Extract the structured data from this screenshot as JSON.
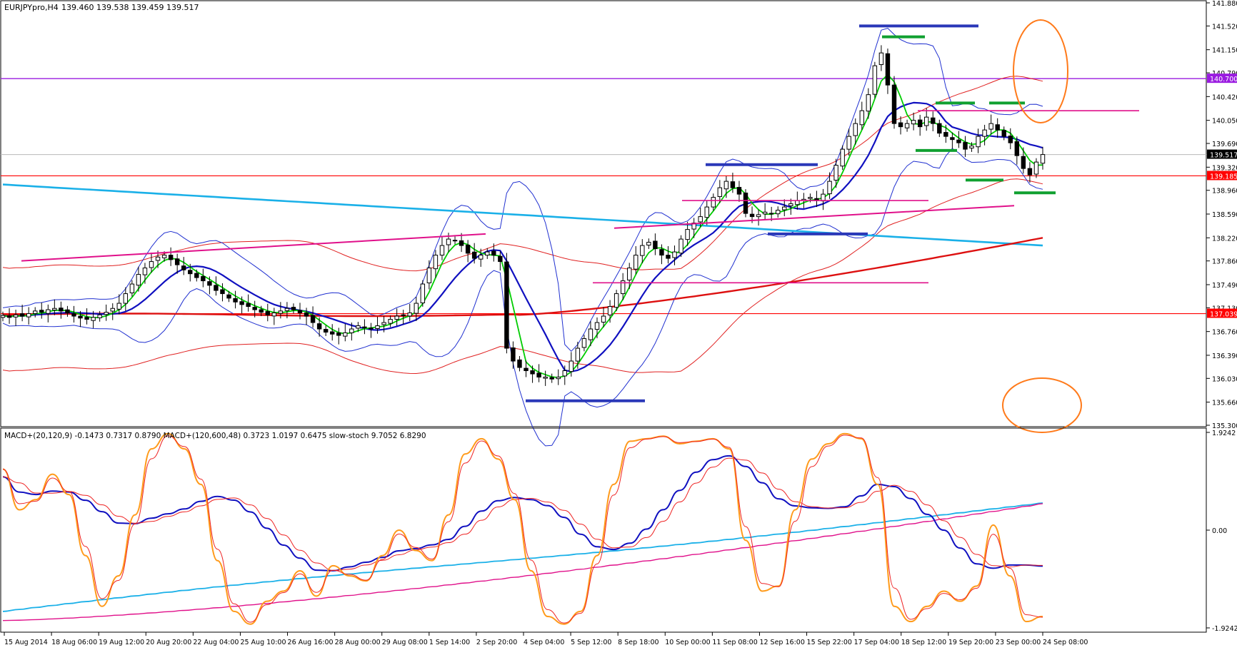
{
  "header": {
    "title": "EURJPYpro,H4",
    "ohlc": "139.460 139.538 139.459 139.517"
  },
  "indicator_header": "MACD+(20,120,9) -0.1473 0.7317 0.8790   MACD+(120,600,48) 0.3723 1.0197 0.6475   slow-stoch 9.7052 6.8290",
  "colors": {
    "bull": "#ffffff",
    "bear": "#000000",
    "ma_fast": "#00cc00",
    "ma_mid": "#1010c0",
    "ma_long": "#dd1010",
    "ma_slow": "#1ab0e8",
    "bollinger": "#2030d0",
    "envelope": "#e02020",
    "trendline": "#e0108a",
    "level_purple": "#9a1be0",
    "level_red": "#ff0000",
    "annotation": "#ff7a1a",
    "bar_blue": "#2a38b8",
    "bar_green": "#10a030",
    "stoch": "#ff9a1a",
    "stoch_signal": "#ee2222"
  },
  "chart_data": [
    {
      "type": "candlestick",
      "symbol": "EURJPYpro",
      "timeframe": "H4",
      "ylim": [
        135.3,
        141.88
      ],
      "y_ticks": [
        "141.880",
        "141.520",
        "141.150",
        "140.790",
        "140.420",
        "140.050",
        "139.690",
        "139.320",
        "138.960",
        "138.590",
        "138.220",
        "137.860",
        "137.490",
        "137.130",
        "136.760",
        "136.390",
        "136.030",
        "135.660",
        "135.300"
      ],
      "x_ticks": [
        "15 Aug 2014",
        "18 Aug 06:00",
        "19 Aug 12:00",
        "20 Aug 20:00",
        "22 Aug 04:00",
        "25 Aug 10:00",
        "26 Aug 16:00",
        "28 Aug 00:00",
        "29 Aug 08:00",
        "1 Sep 14:00",
        "2 Sep 20:00",
        "4 Sep 04:00",
        "5 Sep 12:00",
        "8 Sep 18:00",
        "10 Sep 00:00",
        "11 Sep 08:00",
        "12 Sep 16:00",
        "15 Sep 22:00",
        "17 Sep 04:00",
        "18 Sep 12:00",
        "19 Sep 20:00",
        "23 Sep 00:00",
        "24 Sep 08:00"
      ],
      "price_labels": [
        {
          "value": 140.7,
          "text": "140.700",
          "kind": "purple"
        },
        {
          "value": 139.517,
          "text": "139.517",
          "kind": "current"
        },
        {
          "value": 139.185,
          "text": "139.185",
          "kind": "red"
        },
        {
          "value": 137.039,
          "text": "137.039",
          "kind": "red"
        }
      ],
      "horizontal_levels": [
        140.7,
        139.185,
        137.039
      ],
      "current_price": 139.517,
      "closes": [
        137.01,
        136.98,
        137.02,
        137.0,
        137.04,
        137.08,
        137.06,
        137.1,
        137.12,
        137.08,
        137.05,
        137.0,
        136.97,
        136.95,
        136.98,
        137.02,
        137.06,
        137.12,
        137.2,
        137.35,
        137.5,
        137.65,
        137.75,
        137.85,
        137.92,
        137.95,
        137.88,
        137.8,
        137.72,
        137.66,
        137.6,
        137.55,
        137.48,
        137.4,
        137.35,
        137.28,
        137.22,
        137.18,
        137.15,
        137.1,
        137.06,
        137.02,
        137.05,
        137.08,
        137.12,
        137.1,
        137.05,
        137.0,
        136.9,
        136.8,
        136.75,
        136.72,
        136.7,
        136.74,
        136.8,
        136.85,
        136.82,
        136.8,
        136.85,
        136.9,
        136.95,
        137.0,
        137.02,
        137.05,
        137.2,
        137.5,
        137.75,
        137.95,
        138.1,
        138.2,
        138.18,
        138.1,
        137.98,
        137.9,
        137.95,
        138.0,
        137.95,
        137.85,
        136.5,
        136.3,
        136.2,
        136.15,
        136.1,
        136.05,
        136.05,
        136.02,
        136.05,
        136.15,
        136.3,
        136.5,
        136.65,
        136.8,
        136.9,
        137.0,
        137.15,
        137.35,
        137.55,
        137.75,
        137.95,
        138.1,
        138.15,
        138.05,
        137.95,
        137.9,
        138.0,
        138.2,
        138.35,
        138.45,
        138.55,
        138.7,
        138.85,
        139.0,
        139.1,
        139.0,
        138.9,
        138.6,
        138.55,
        138.58,
        138.62,
        138.6,
        138.65,
        138.7,
        138.75,
        138.8,
        138.82,
        138.85,
        138.8,
        138.9,
        139.1,
        139.35,
        139.6,
        139.8,
        140.0,
        140.2,
        140.45,
        140.9,
        141.1,
        140.6,
        140.0,
        139.95,
        140.0,
        140.05,
        139.95,
        140.1,
        140.0,
        139.85,
        139.8,
        139.75,
        139.7,
        139.6,
        139.65,
        139.8,
        139.9,
        140.0,
        139.9,
        139.8,
        139.7,
        139.5,
        139.3,
        139.2,
        139.4,
        139.517
      ]
    },
    {
      "type": "line",
      "indicator": "MACD+(20,120,9) / MACD+(120,600,48) / slow-stoch",
      "ylim": [
        -1.9242,
        1.9242
      ],
      "y_ticks": [
        "1.9242",
        "0.00",
        "-1.9242"
      ],
      "series": [
        {
          "name": "slow-stoch",
          "values": [
            1.2,
            0.4,
            0.6,
            1.1,
            0.7,
            -0.5,
            -1.5,
            -0.9,
            0.3,
            1.6,
            1.9,
            1.6,
            0.9,
            -0.6,
            -1.6,
            -1.85,
            -1.4,
            -1.2,
            -0.8,
            -1.3,
            -0.7,
            -0.9,
            -1.0,
            -0.5,
            0.0,
            -0.4,
            -0.6,
            0.3,
            1.5,
            1.8,
            1.4,
            0.6,
            -0.8,
            -1.7,
            -1.85,
            -1.6,
            -0.5,
            0.9,
            1.75,
            1.8,
            1.85,
            1.7,
            1.75,
            1.8,
            1.6,
            -0.2,
            -1.2,
            -1.1,
            0.4,
            1.4,
            1.7,
            1.9,
            1.8,
            0.9,
            -1.5,
            -1.8,
            -1.5,
            -1.2,
            -1.4,
            -1.1,
            0.1,
            -0.9,
            -1.8,
            -1.7
          ]
        }
      ]
    }
  ]
}
